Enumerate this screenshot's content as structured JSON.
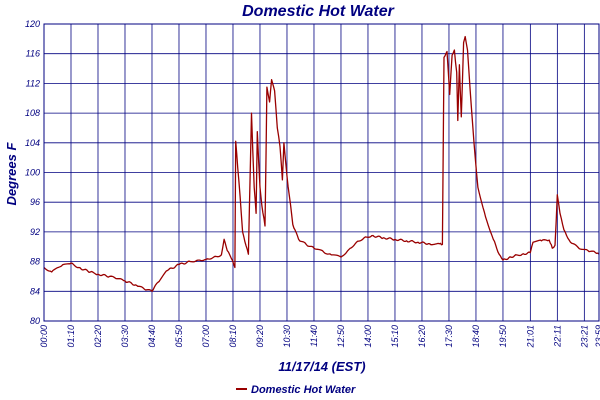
{
  "chart_data": {
    "type": "line",
    "title": "Domestic Hot Water",
    "xlabel": "11/17/14 (EST)",
    "ylabel": "Degrees F",
    "ylim": [
      80,
      120
    ],
    "yticks": [
      80,
      84,
      88,
      92,
      96,
      100,
      104,
      108,
      112,
      116,
      120
    ],
    "xticks": [
      "00:00",
      "01:10",
      "02:20",
      "03:30",
      "04:40",
      "05:50",
      "07:00",
      "08:10",
      "09:20",
      "10:30",
      "11:40",
      "12:50",
      "14:00",
      "15:10",
      "16:20",
      "17:30",
      "18:40",
      "19:50",
      "21:01",
      "22:11",
      "23:21",
      "23:59"
    ],
    "grid": true,
    "legend": "bottom",
    "line_color": "#990000",
    "grid_color": "#000080",
    "series": [
      {
        "name": "Domestic Hot Water",
        "points": [
          [
            "00:00",
            87.2
          ],
          [
            "00:20",
            86.6
          ],
          [
            "00:45",
            87.4
          ],
          [
            "01:10",
            87.8
          ],
          [
            "01:30",
            87.2
          ],
          [
            "02:00",
            86.6
          ],
          [
            "02:20",
            86.3
          ],
          [
            "02:50",
            86.0
          ],
          [
            "03:10",
            85.7
          ],
          [
            "03:30",
            85.4
          ],
          [
            "04:00",
            84.8
          ],
          [
            "04:20",
            84.3
          ],
          [
            "04:40",
            84.0
          ],
          [
            "04:55",
            85.2
          ],
          [
            "05:20",
            86.8
          ],
          [
            "05:50",
            87.6
          ],
          [
            "06:20",
            88.0
          ],
          [
            "06:40",
            88.2
          ],
          [
            "07:00",
            88.3
          ],
          [
            "07:20",
            88.6
          ],
          [
            "07:40",
            88.9
          ],
          [
            "07:47",
            91.0
          ],
          [
            "07:55",
            89.5
          ],
          [
            "08:05",
            88.5
          ],
          [
            "08:15",
            87.2
          ],
          [
            "08:17",
            104.2
          ],
          [
            "08:25",
            99.0
          ],
          [
            "08:35",
            92.0
          ],
          [
            "08:50",
            89.0
          ],
          [
            "08:58",
            108.0
          ],
          [
            "09:05",
            98.0
          ],
          [
            "09:10",
            94.5
          ],
          [
            "09:13",
            105.5
          ],
          [
            "09:20",
            98.0
          ],
          [
            "09:25",
            95.5
          ],
          [
            "09:33",
            92.8
          ],
          [
            "09:38",
            111.5
          ],
          [
            "09:45",
            109.5
          ],
          [
            "09:50",
            112.5
          ],
          [
            "09:58",
            111.0
          ],
          [
            "10:05",
            106.0
          ],
          [
            "10:12",
            103.5
          ],
          [
            "10:18",
            99.0
          ],
          [
            "10:22",
            104.0
          ],
          [
            "10:30",
            99.5
          ],
          [
            "10:45",
            93.0
          ],
          [
            "11:00",
            91.0
          ],
          [
            "11:20",
            90.3
          ],
          [
            "11:40",
            89.8
          ],
          [
            "12:05",
            89.3
          ],
          [
            "12:25",
            88.9
          ],
          [
            "12:50",
            88.6
          ],
          [
            "13:10",
            89.6
          ],
          [
            "13:30",
            90.6
          ],
          [
            "13:50",
            91.2
          ],
          [
            "14:10",
            91.5
          ],
          [
            "14:40",
            91.2
          ],
          [
            "15:10",
            91.0
          ],
          [
            "15:40",
            90.8
          ],
          [
            "16:10",
            90.6
          ],
          [
            "16:40",
            90.4
          ],
          [
            "17:05",
            90.4
          ],
          [
            "17:13",
            90.3
          ],
          [
            "17:17",
            115.5
          ],
          [
            "17:25",
            116.3
          ],
          [
            "17:32",
            110.5
          ],
          [
            "17:38",
            115.8
          ],
          [
            "17:44",
            116.5
          ],
          [
            "17:50",
            113.5
          ],
          [
            "17:53",
            107.0
          ],
          [
            "17:57",
            114.5
          ],
          [
            "18:02",
            107.5
          ],
          [
            "18:08",
            117.5
          ],
          [
            "18:12",
            118.3
          ],
          [
            "18:18",
            116.5
          ],
          [
            "18:25",
            111.0
          ],
          [
            "18:35",
            104.0
          ],
          [
            "18:45",
            98.0
          ],
          [
            "19:05",
            94.0
          ],
          [
            "19:25",
            91.0
          ],
          [
            "19:40",
            89.0
          ],
          [
            "19:50",
            88.2
          ],
          [
            "20:05",
            88.5
          ],
          [
            "20:20",
            88.8
          ],
          [
            "20:40",
            89.0
          ],
          [
            "21:01",
            89.2
          ],
          [
            "21:08",
            90.6
          ],
          [
            "21:30",
            90.8
          ],
          [
            "21:50",
            90.9
          ],
          [
            "21:58",
            89.8
          ],
          [
            "22:05",
            90.2
          ],
          [
            "22:11",
            97.0
          ],
          [
            "22:18",
            94.5
          ],
          [
            "22:28",
            92.3
          ],
          [
            "22:45",
            90.6
          ],
          [
            "23:05",
            89.9
          ],
          [
            "23:30",
            89.5
          ],
          [
            "23:50",
            89.2
          ],
          [
            "23:59",
            89.0
          ]
        ]
      }
    ]
  }
}
